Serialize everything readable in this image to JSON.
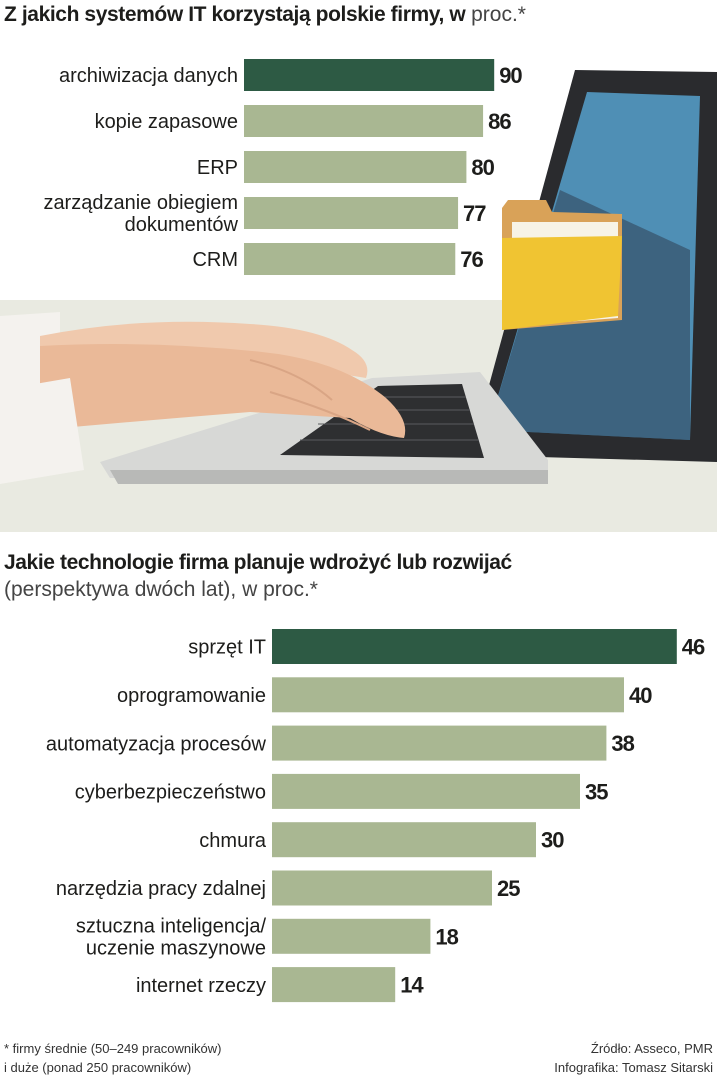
{
  "chart1": {
    "title_bold": "Z jakich systemów IT korzystają polskie firmy, w",
    "title_normal": "proc.*"
  },
  "chart2": {
    "title_bold": "Jakie technologie firma planuje wdrożyć lub rozwijać",
    "title_normal": "(perspektywa dwóch lat), w proc.*"
  },
  "chart_data": [
    {
      "type": "bar",
      "orientation": "horizontal",
      "title": "Z jakich systemów IT korzystają polskie firmy, w proc.*",
      "categories": [
        [
          "archiwizacja danych"
        ],
        [
          "kopie zapasowe"
        ],
        [
          "ERP"
        ],
        [
          "zarządzanie obiegiem",
          "dokumentów"
        ],
        [
          "CRM"
        ]
      ],
      "values": [
        90,
        86,
        80,
        77,
        76
      ],
      "highlight_index": 0,
      "colors": {
        "highlight": "#2d5a44",
        "bar": "#a9b792"
      },
      "grid": false,
      "legend": "none"
    },
    {
      "type": "bar",
      "orientation": "horizontal",
      "title": "Jakie technologie firma planuje wdrożyć lub rozwijać (perspektywa dwóch lat), w proc.*",
      "categories": [
        [
          "sprzęt IT"
        ],
        [
          "oprogramowanie"
        ],
        [
          "automatyzacja procesów"
        ],
        [
          "cyberbezpieczeństwo"
        ],
        [
          "chmura"
        ],
        [
          "narzędzia pracy zdalnej"
        ],
        [
          "sztuczna inteligencja/",
          "uczenie maszynowe"
        ],
        [
          "internet rzeczy"
        ]
      ],
      "values": [
        46,
        40,
        38,
        35,
        30,
        25,
        18,
        14
      ],
      "highlight_index": 0,
      "colors": {
        "highlight": "#2d5a44",
        "bar": "#a9b792"
      },
      "grid": false,
      "legend": "none"
    }
  ],
  "illustration": {
    "name": "laptop-with-typing-hands",
    "folder_icon": "folder-icon",
    "colors": {
      "screen": "#4f8fb5",
      "folder": "#f0c432",
      "folder_tab": "#d9a258",
      "laptop": "#d7d8d6",
      "background": "#e9eae1"
    }
  },
  "footer": {
    "footnote_line1": "* firmy średnie (50–249 pracowników)",
    "footnote_line2": "i duże (ponad 250 pracowników)",
    "source": "Źródło: Asseco, PMR",
    "credit": "Infografika: Tomasz Sitarski"
  }
}
